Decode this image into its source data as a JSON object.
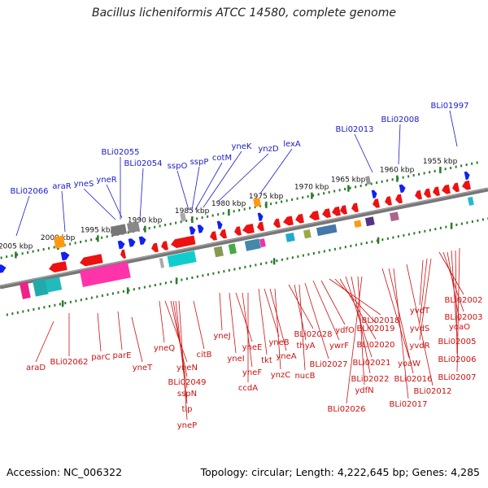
{
  "title": "Bacillus licheniformis ATCC 14580, complete genome",
  "footer": {
    "accession": "Accession: NC_006322",
    "topology": "Topology: circular; Length: 4,222,645 bp; Genes: 4,285"
  },
  "colors": {
    "axis": "#777777",
    "tick": "#2a7a2a",
    "forward_label": "#1a1acc",
    "reverse_label": "#cc1111",
    "reverse_gene": "#ee1111",
    "forward_gene": "#1122ee"
  },
  "kbp_scale": [
    {
      "label": "1955 kbp"
    },
    {
      "label": "1960 kbp"
    },
    {
      "label": "1965 kbp"
    },
    {
      "label": "1970 kbp"
    },
    {
      "label": "1975 kbp"
    },
    {
      "label": "1980 kbp"
    },
    {
      "label": "1985 kbp"
    },
    {
      "label": "1990 kbp"
    },
    {
      "label": "1995 kbp"
    },
    {
      "label": "2000 kbp"
    },
    {
      "label": "2005 kbp"
    }
  ],
  "forward_strand_labels": [
    "BLi01997",
    "BLi02008",
    "BLi02013",
    "lexA",
    "ynzD",
    "yneK",
    "cotM",
    "sspP",
    "sspO",
    "BLi02054",
    "BLi02055",
    "yneR",
    "yneS",
    "araR",
    "BLi02066"
  ],
  "reverse_strand_labels": [
    "araD",
    "BLi02062",
    "parC",
    "parE",
    "yneT",
    "yneQ",
    "yneN",
    "BLi02049",
    "sspN",
    "tlp",
    "yneP",
    "citB",
    "yneJ",
    "yneI",
    "yneE",
    "yneF",
    "ccdA",
    "tkt",
    "yneB",
    "yneA",
    "ynzC",
    "BLi02028",
    "thyA",
    "nucB",
    "BLi02027",
    "ywrF",
    "ydfO",
    "BLi02018",
    "BLi02019",
    "BLi02020",
    "BLi02021",
    "BLi02022",
    "ydfN",
    "BLi02026",
    "yoaW",
    "BLi02016",
    "BLi02017",
    "yvdT",
    "yvdS",
    "yvdR",
    "BLi02012",
    "BLi02002",
    "BLi02003",
    "yoaO",
    "BLi02005",
    "BLi02006",
    "BLi02007"
  ]
}
